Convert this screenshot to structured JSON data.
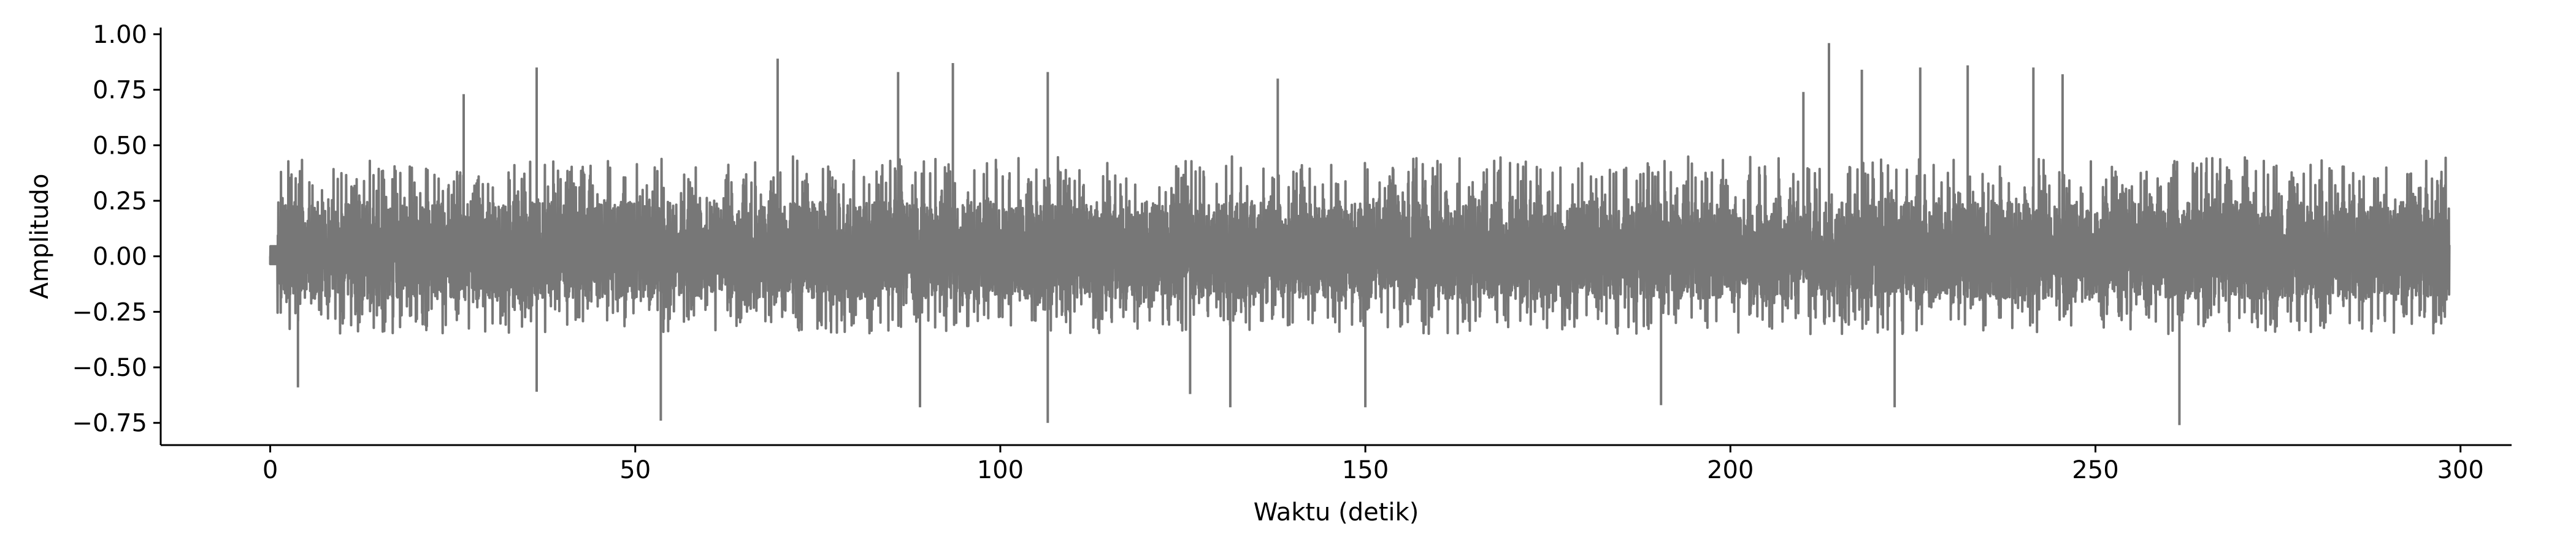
{
  "chart_data": {
    "type": "line",
    "title": "",
    "xlabel": "Waktu (detik)",
    "ylabel": "Amplitudo",
    "xlim": [
      -15,
      307
    ],
    "ylim": [
      -0.85,
      1.03
    ],
    "xticks": [
      0,
      50,
      100,
      150,
      200,
      250,
      300
    ],
    "xtick_labels": [
      "0",
      "50",
      "100",
      "150",
      "200",
      "250",
      "300"
    ],
    "yticks": [
      -0.75,
      -0.5,
      -0.25,
      0.0,
      0.25,
      0.5,
      0.75,
      1.0
    ],
    "ytick_labels": [
      "−0.75",
      "−0.50",
      "−0.25",
      "0.00",
      "0.25",
      "0.50",
      "0.75",
      "1.00"
    ],
    "grid": false,
    "legend": "none",
    "series_color": "#777777",
    "series": [
      {
        "x_range": [
          0,
          298.5
        ],
        "typical_envelope": [
          -0.35,
          0.45
        ],
        "segment_boundaries": [
          1,
          13,
          26.5,
          105.5,
          125,
          146.5,
          190,
          201,
          297
        ],
        "peaks": [
          {
            "x": 26.5,
            "y": 0.73
          },
          {
            "x": 36.5,
            "y": 0.85
          },
          {
            "x": 69.5,
            "y": 0.89
          },
          {
            "x": 86,
            "y": 0.83
          },
          {
            "x": 93.5,
            "y": 0.87
          },
          {
            "x": 106.5,
            "y": 0.83
          },
          {
            "x": 138,
            "y": 0.8
          },
          {
            "x": 210,
            "y": 0.74
          },
          {
            "x": 213.5,
            "y": 0.96
          },
          {
            "x": 218,
            "y": 0.84
          },
          {
            "x": 226,
            "y": 0.85
          },
          {
            "x": 232.5,
            "y": 0.86
          },
          {
            "x": 241.5,
            "y": 0.85
          },
          {
            "x": 245.5,
            "y": 0.82
          },
          {
            "x": 3.8,
            "y": -0.59
          },
          {
            "x": 36.5,
            "y": -0.61
          },
          {
            "x": 53.5,
            "y": -0.74
          },
          {
            "x": 89,
            "y": -0.68
          },
          {
            "x": 106.5,
            "y": -0.75
          },
          {
            "x": 126,
            "y": -0.62
          },
          {
            "x": 131.5,
            "y": -0.68
          },
          {
            "x": 150,
            "y": -0.68
          },
          {
            "x": 190.5,
            "y": -0.67
          },
          {
            "x": 222.5,
            "y": -0.68
          },
          {
            "x": 261.5,
            "y": -0.76
          }
        ]
      }
    ]
  }
}
